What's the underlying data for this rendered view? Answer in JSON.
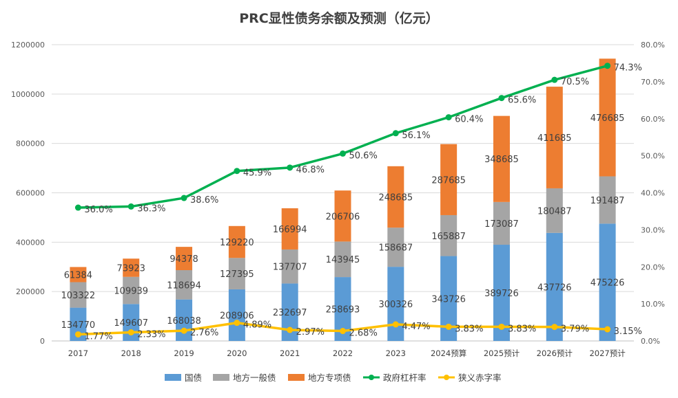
{
  "chart_data": {
    "type": "bar",
    "title": "PRC显性债务余额及预测（亿元）",
    "categories": [
      "2017",
      "2018",
      "2019",
      "2020",
      "2021",
      "2022",
      "2023",
      "2024预算",
      "2025预计",
      "2026预计",
      "2027预计"
    ],
    "series": [
      {
        "name": "国债",
        "kind": "bar",
        "axis": "left",
        "color": "#5B9BD5",
        "values": [
          134770,
          149607,
          168038,
          208906,
          232697,
          258693,
          300326,
          343726,
          389726,
          437726,
          475226
        ]
      },
      {
        "name": "地方一般债",
        "kind": "bar",
        "axis": "left",
        "color": "#A5A5A5",
        "values": [
          103322,
          109939,
          118694,
          127395,
          137707,
          143945,
          158687,
          165887,
          173087,
          180487,
          191487
        ]
      },
      {
        "name": "地方专项债",
        "kind": "bar",
        "axis": "left",
        "color": "#ED7D31",
        "values": [
          61384,
          73923,
          94378,
          129220,
          166994,
          206706,
          248685,
          287685,
          348685,
          411685,
          476685
        ]
      },
      {
        "name": "政府杠杆率",
        "kind": "line",
        "axis": "right",
        "color": "#00B050",
        "values": [
          36.0,
          36.3,
          38.6,
          45.9,
          46.8,
          50.6,
          56.1,
          60.4,
          65.6,
          70.5,
          74.3
        ],
        "labels": [
          "36.0%",
          "36.3%",
          "38.6%",
          "45.9%",
          "46.8%",
          "50.6%",
          "56.1%",
          "60.4%",
          "65.6%",
          "70.5%",
          "74.3%"
        ]
      },
      {
        "name": "狭义赤字率",
        "kind": "line",
        "axis": "right",
        "color": "#FFC000",
        "values": [
          1.77,
          2.33,
          2.76,
          4.89,
          2.97,
          2.68,
          4.47,
          3.83,
          3.83,
          3.79,
          3.15
        ],
        "labels": [
          "1.77%",
          "2.33%",
          "2.76%",
          "4.89%",
          "2.97%",
          "2.68%",
          "4.47%",
          "3.83%",
          "3.83%",
          "3.79%",
          "3.15%"
        ]
      }
    ],
    "y_left": {
      "min": 0,
      "max": 1200000,
      "ticks": [
        0,
        200000,
        400000,
        600000,
        800000,
        1000000,
        1200000
      ],
      "tick_labels": [
        "0",
        "200000",
        "400000",
        "600000",
        "800000",
        "1000000",
        "1200000"
      ]
    },
    "y_right": {
      "min": 0,
      "max": 80,
      "ticks": [
        0,
        10,
        20,
        30,
        40,
        50,
        60,
        70,
        80
      ],
      "tick_labels": [
        "0.0%",
        "10.0%",
        "20.0%",
        "30.0%",
        "40.0%",
        "50.0%",
        "60.0%",
        "70.0%",
        "80.0%"
      ]
    },
    "grid": true,
    "legend": "bottom"
  }
}
